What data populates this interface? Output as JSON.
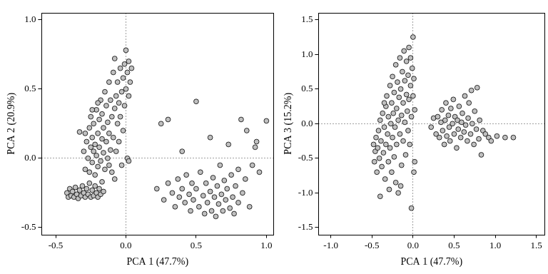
{
  "chart_data": [
    {
      "type": "scatter",
      "x_label": "PCA 1 (47.7%)",
      "y_label": "PCA 2 (20.9%)",
      "color": "#c0c0c0",
      "marker": "circle",
      "xlim": [
        -0.6,
        1.05
      ],
      "xticks": [
        -0.5,
        {
          "value": 0,
          "label": "0.0"
        },
        0.5,
        {
          "value": 1,
          "label": "1.0"
        }
      ],
      "ylim": [
        -0.55,
        1.05
      ],
      "yticks": [
        -0.5,
        {
          "value": 0,
          "label": "0.0"
        },
        0.5,
        {
          "value": 1,
          "label": "1.0"
        }
      ],
      "x": [
        -0.42,
        -0.41,
        -0.4,
        -0.39,
        -0.38,
        -0.37,
        -0.36,
        -0.35,
        -0.34,
        -0.33,
        -0.32,
        -0.31,
        -0.3,
        -0.29,
        -0.28,
        -0.27,
        -0.26,
        -0.25,
        -0.24,
        -0.23,
        -0.22,
        -0.21,
        -0.2,
        -0.19,
        -0.18,
        -0.17,
        -0.16,
        -0.33,
        -0.3,
        -0.29,
        -0.28,
        -0.27,
        -0.26,
        -0.26,
        -0.25,
        -0.25,
        -0.24,
        -0.24,
        -0.23,
        -0.23,
        -0.22,
        -0.22,
        -0.21,
        -0.21,
        -0.2,
        -0.2,
        -0.19,
        -0.19,
        -0.18,
        -0.18,
        -0.17,
        -0.17,
        -0.16,
        -0.16,
        -0.15,
        -0.15,
        -0.14,
        -0.14,
        -0.13,
        -0.13,
        -0.12,
        -0.12,
        -0.11,
        -0.11,
        -0.1,
        -0.1,
        -0.09,
        -0.09,
        -0.08,
        -0.08,
        -0.07,
        -0.07,
        -0.06,
        -0.06,
        -0.05,
        -0.05,
        -0.04,
        -0.04,
        -0.03,
        -0.03,
        -0.02,
        -0.02,
        -0.01,
        -0.01,
        0.0,
        0.0,
        0.01,
        0.01,
        0.02,
        0.02,
        0.03,
        0.04,
        0.02,
        -0.12,
        -0.29,
        -0.08,
        -0.2,
        -0.24,
        0.22,
        0.25,
        0.27,
        0.3,
        0.3,
        0.33,
        0.35,
        0.37,
        0.38,
        0.4,
        0.4,
        0.42,
        0.43,
        0.45,
        0.46,
        0.47,
        0.48,
        0.5,
        0.5,
        0.52,
        0.53,
        0.55,
        0.56,
        0.57,
        0.58,
        0.6,
        0.6,
        0.61,
        0.62,
        0.63,
        0.64,
        0.65,
        0.66,
        0.67,
        0.68,
        0.69,
        0.7,
        0.71,
        0.72,
        0.73,
        0.74,
        0.75,
        0.76,
        0.77,
        0.78,
        0.8,
        0.8,
        0.82,
        0.83,
        0.85,
        0.86,
        0.88,
        0.9,
        0.92,
        0.93,
        0.95,
        1.0
      ],
      "values": [
        -0.25,
        -0.28,
        -0.22,
        -0.27,
        -0.24,
        -0.28,
        -0.21,
        -0.26,
        -0.29,
        -0.23,
        -0.27,
        -0.2,
        -0.25,
        -0.28,
        -0.22,
        -0.26,
        -0.18,
        -0.28,
        -0.23,
        -0.27,
        -0.2,
        -0.25,
        -0.28,
        -0.22,
        -0.26,
        -0.17,
        -0.24,
        0.19,
        0.05,
        -0.08,
        0.12,
        0.0,
        0.22,
        -0.1,
        0.08,
        0.3,
        -0.03,
        0.15,
        0.05,
        0.25,
        -0.12,
        0.1,
        0.35,
        0.02,
        0.18,
        -0.06,
        0.28,
        0.08,
        0.42,
        -0.02,
        0.14,
        0.32,
        0.04,
        0.22,
        0.48,
        -0.08,
        0.12,
        0.38,
        0.26,
        0.0,
        0.55,
        0.18,
        0.06,
        0.42,
        0.3,
        -0.1,
        0.62,
        0.15,
        0.36,
        0.72,
        0.45,
        0.05,
        0.25,
        0.55,
        0.4,
        0.12,
        0.65,
        0.3,
        0.48,
        -0.05,
        0.58,
        0.2,
        0.38,
        0.68,
        0.78,
        0.5,
        0.62,
        0.0,
        0.45,
        0.7,
        0.55,
        0.65,
        -0.02,
        -0.05,
        0.18,
        -0.15,
        0.4,
        0.35,
        -0.22,
        0.25,
        -0.3,
        0.28,
        -0.18,
        -0.25,
        -0.35,
        -0.15,
        -0.28,
        -0.22,
        0.05,
        -0.32,
        -0.12,
        -0.26,
        -0.38,
        -0.18,
        -0.3,
        0.41,
        -0.22,
        -0.35,
        -0.1,
        -0.27,
        -0.4,
        -0.18,
        -0.32,
        -0.24,
        0.15,
        -0.38,
        -0.14,
        -0.28,
        -0.42,
        -0.2,
        -0.33,
        -0.05,
        -0.26,
        -0.38,
        -0.16,
        -0.3,
        -0.22,
        0.1,
        -0.36,
        -0.12,
        -0.28,
        -0.4,
        -0.2,
        -0.32,
        -0.08,
        0.28,
        -0.25,
        -0.15,
        0.2,
        -0.35,
        -0.05,
        0.08,
        0.12,
        -0.1,
        0.27
      ]
    },
    {
      "type": "scatter",
      "x_label": "PCA 1 (47.7%)",
      "y_label": "PCA 3 (15.2%)",
      "color": "#c0c0c0",
      "marker": "circle",
      "xlim": [
        -1.15,
        1.6
      ],
      "xticks": [
        {
          "value": -1,
          "label": "-1.0"
        },
        -0.5,
        {
          "value": 0,
          "label": "0.0"
        },
        0.5,
        {
          "value": 1,
          "label": "1.0"
        },
        1.5
      ],
      "ylim": [
        -1.6,
        1.6
      ],
      "yticks": [
        -1.5,
        {
          "value": -1,
          "label": "-1.0"
        },
        -0.5,
        {
          "value": 0,
          "label": "0.0"
        },
        0.5,
        {
          "value": 1,
          "label": "1.0"
        },
        1.5
      ],
      "x": [
        -0.48,
        -0.47,
        -0.46,
        -0.45,
        -0.44,
        -0.43,
        -0.42,
        -0.41,
        -0.4,
        -0.4,
        -0.39,
        -0.38,
        -0.37,
        -0.36,
        -0.35,
        -0.34,
        -0.33,
        -0.33,
        -0.32,
        -0.31,
        -0.3,
        -0.3,
        -0.29,
        -0.28,
        -0.28,
        -0.27,
        -0.26,
        -0.26,
        -0.25,
        -0.25,
        -0.24,
        -0.23,
        -0.23,
        -0.22,
        -0.21,
        -0.21,
        -0.2,
        -0.2,
        -0.19,
        -0.18,
        -0.18,
        -0.17,
        -0.16,
        -0.16,
        -0.15,
        -0.14,
        -0.14,
        -0.13,
        -0.12,
        -0.12,
        -0.11,
        -0.1,
        -0.1,
        -0.09,
        -0.08,
        -0.08,
        -0.07,
        -0.06,
        -0.06,
        -0.05,
        -0.05,
        -0.04,
        -0.03,
        -0.03,
        -0.02,
        -0.02,
        -0.01,
        0.0,
        0.0,
        0.01,
        0.01,
        0.02,
        0.02,
        -0.15,
        -0.35,
        0.22,
        0.25,
        0.28,
        0.3,
        0.32,
        0.34,
        0.35,
        0.36,
        0.38,
        0.39,
        0.4,
        0.41,
        0.43,
        0.44,
        0.45,
        0.46,
        0.48,
        0.49,
        0.5,
        0.51,
        0.53,
        0.54,
        0.55,
        0.56,
        0.58,
        0.59,
        0.6,
        0.62,
        0.63,
        0.64,
        0.66,
        0.67,
        0.68,
        0.7,
        0.71,
        0.72,
        0.74,
        0.75,
        0.77,
        0.78,
        0.8,
        0.81,
        0.83,
        0.85,
        0.88,
        0.92,
        0.95,
        1.02,
        1.12,
        1.22
      ],
      "values": [
        -0.3,
        -0.55,
        -0.4,
        -0.2,
        -0.7,
        -0.35,
        -0.1,
        -0.5,
        -1.05,
        0.05,
        -0.25,
        -0.62,
        0.15,
        -0.42,
        -0.05,
        -0.8,
        0.25,
        -0.3,
        0.4,
        -0.15,
        -0.55,
        0.1,
        -0.95,
        0.55,
        -0.35,
        0.0,
        0.3,
        -0.7,
        -0.2,
        0.68,
        0.15,
        -0.48,
        0.45,
        -0.05,
        0.85,
        -0.85,
        0.22,
        -0.3,
        0.6,
        0.05,
        -1.0,
        0.38,
        -0.15,
        0.95,
        0.5,
        -0.6,
        0.12,
        0.75,
        -0.25,
        0.3,
        1.05,
        0.02,
        0.62,
        -0.45,
        0.42,
        0.9,
        0.18,
        -0.1,
        0.7,
        1.1,
        0.35,
        -0.3,
        0.55,
        0.95,
        0.1,
        -1.22,
        0.8,
        1.25,
        0.4,
        -0.7,
        0.65,
        0.2,
        -0.55,
        -0.9,
        0.3,
        -0.05,
        0.08,
        -0.15,
        0.1,
        -0.2,
        0.02,
        0.2,
        -0.1,
        -0.3,
        0.05,
        0.3,
        -0.18,
        0.12,
        -0.05,
        -0.25,
        0.22,
        0.0,
        0.35,
        -0.15,
        0.1,
        -0.35,
        0.05,
        -0.08,
        0.25,
        -0.2,
        0.02,
        0.15,
        -0.12,
        0.4,
        -0.02,
        -0.25,
        0.08,
        0.3,
        -0.15,
        0.48,
        0.0,
        -0.3,
        0.18,
        -0.08,
        0.52,
        -0.22,
        0.05,
        -0.45,
        -0.1,
        -0.15,
        -0.2,
        -0.25,
        -0.18,
        -0.2,
        -0.2
      ]
    }
  ]
}
